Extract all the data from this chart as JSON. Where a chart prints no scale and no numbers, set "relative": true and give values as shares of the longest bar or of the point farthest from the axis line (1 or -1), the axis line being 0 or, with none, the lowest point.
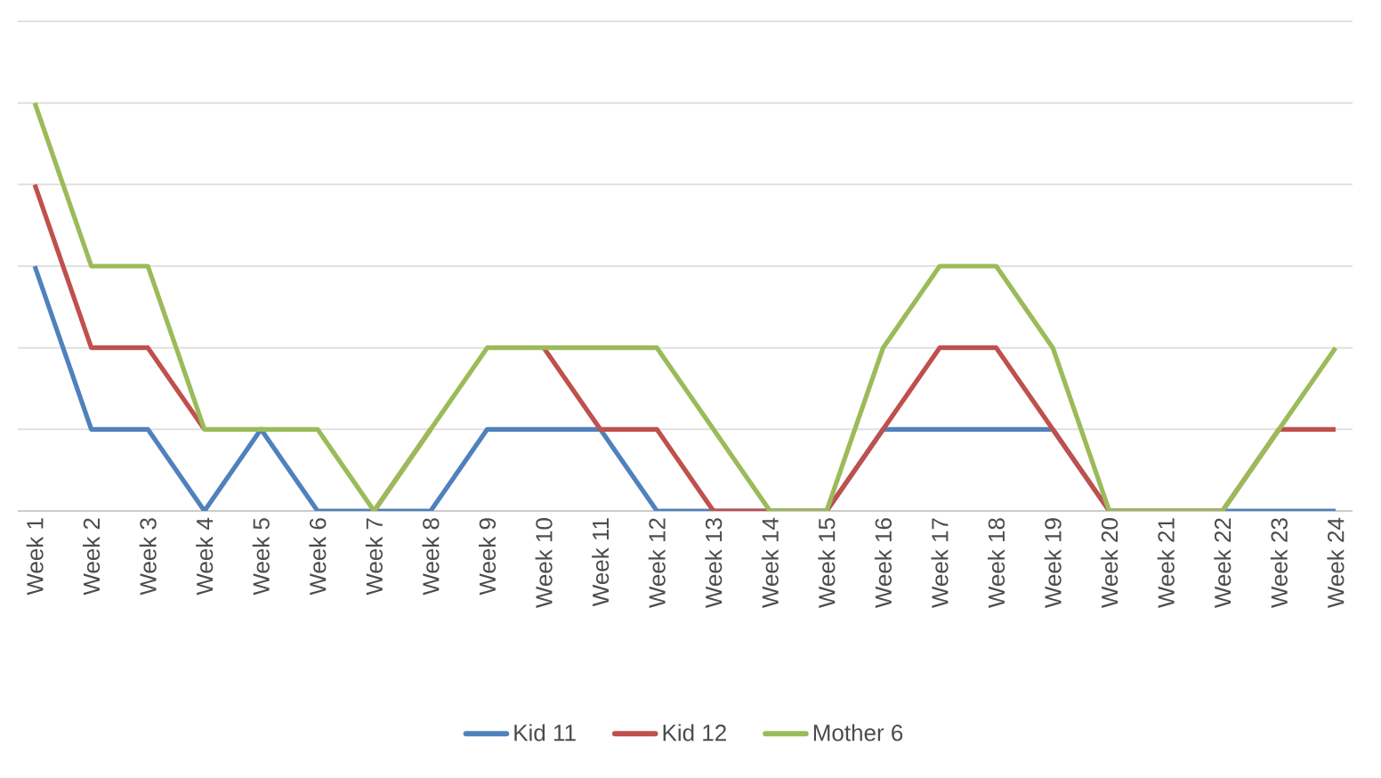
{
  "chart_data": {
    "type": "line",
    "relative": true,
    "grid": "y",
    "legend": "bottom",
    "categories": [
      "Week 1",
      "Week 2",
      "Week 3",
      "Week 4",
      "Week 5",
      "Week 6",
      "Week 7",
      "Week 8",
      "Week 9",
      "Week 10",
      "Week 11",
      "Week 12",
      "Week 13",
      "Week 14",
      "Week 15",
      "Week 16",
      "Week 17",
      "Week 18",
      "Week 19",
      "Week 20",
      "Week 21",
      "Week 22",
      "Week 23",
      "Week 24"
    ],
    "series": [
      {
        "name": "Kid 11",
        "color": "#4f81bd",
        "values": [
          0.6,
          0.2,
          0.2,
          0,
          0.2,
          0,
          0,
          0,
          0.2,
          0.2,
          0.2,
          0,
          0,
          0,
          0,
          0.2,
          0.2,
          0.2,
          0.2,
          0,
          0,
          0,
          0,
          0
        ]
      },
      {
        "name": "Kid 12",
        "color": "#c0504d",
        "values": [
          0.8,
          0.4,
          0.4,
          0.2,
          null,
          null,
          0,
          0.2,
          null,
          0.4,
          0.2,
          0.2,
          0,
          0,
          0,
          0.2,
          0.4,
          0.4,
          0.2,
          0,
          0,
          0,
          0.2,
          0.2
        ]
      },
      {
        "name": "Mother 6",
        "color": "#9bbb59",
        "values": [
          1,
          0.6,
          0.6,
          0.2,
          0.2,
          0.2,
          0,
          0.2,
          0.4,
          0.4,
          0.4,
          0.4,
          0.2,
          0,
          0,
          0.4,
          0.6,
          0.6,
          0.4,
          0,
          0,
          0,
          0.2,
          0.4
        ]
      }
    ]
  }
}
